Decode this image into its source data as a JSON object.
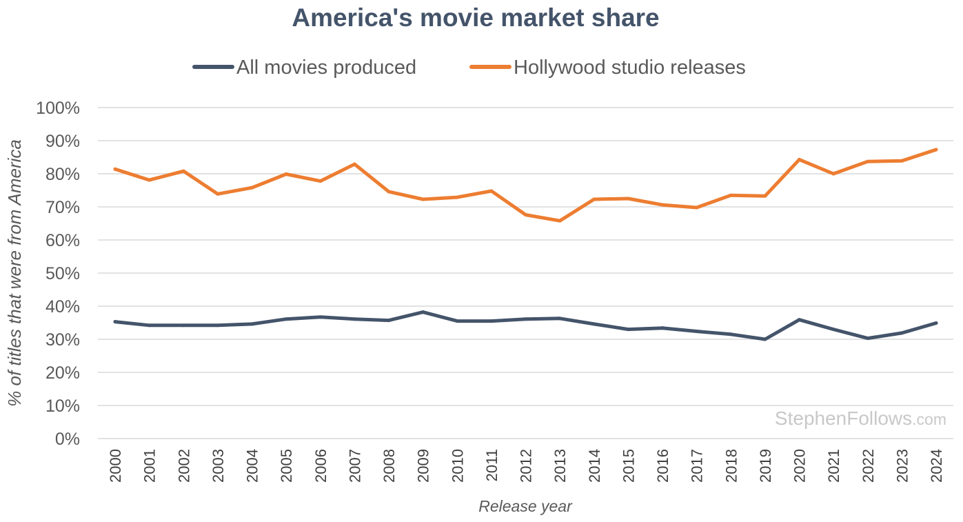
{
  "chart_data": {
    "type": "line",
    "title": "America's movie market share",
    "xlabel": "Release year",
    "ylabel": "% of titles that were from America",
    "ylim": [
      0,
      100
    ],
    "yticks": [
      "0%",
      "10%",
      "20%",
      "30%",
      "40%",
      "50%",
      "60%",
      "70%",
      "80%",
      "90%",
      "100%"
    ],
    "y_tick_values": [
      0,
      10,
      20,
      30,
      40,
      50,
      60,
      70,
      80,
      90,
      100
    ],
    "grid": true,
    "legend_position": "top",
    "categories": [
      "2000",
      "2001",
      "2002",
      "2003",
      "2004",
      "2005",
      "2006",
      "2007",
      "2008",
      "2009",
      "2010",
      "2011",
      "2012",
      "2013",
      "2014",
      "2015",
      "2016",
      "2017",
      "2018",
      "2019",
      "2020",
      "2021",
      "2022",
      "2023",
      "2024"
    ],
    "series": [
      {
        "name": "All movies produced",
        "color": "#44546a",
        "values": [
          35.3,
          34.2,
          34.2,
          34.2,
          34.6,
          36.1,
          36.7,
          36.1,
          35.7,
          38.2,
          35.5,
          35.5,
          36.1,
          36.3,
          34.6,
          33.0,
          33.4,
          32.4,
          31.5,
          30.0,
          35.9,
          33.0,
          30.3,
          31.9,
          34.9
        ]
      },
      {
        "name": "Hollywood studio releases",
        "color": "#ed7d31",
        "values": [
          81.4,
          78.1,
          80.8,
          73.9,
          75.8,
          79.9,
          77.8,
          82.9,
          74.6,
          72.3,
          72.9,
          74.8,
          67.6,
          65.8,
          72.3,
          72.5,
          70.6,
          69.8,
          73.5,
          73.3,
          84.3,
          80.0,
          83.7,
          83.9,
          87.3
        ]
      }
    ]
  },
  "watermark": {
    "main": "StephenFollows",
    "suffix": ".com"
  }
}
